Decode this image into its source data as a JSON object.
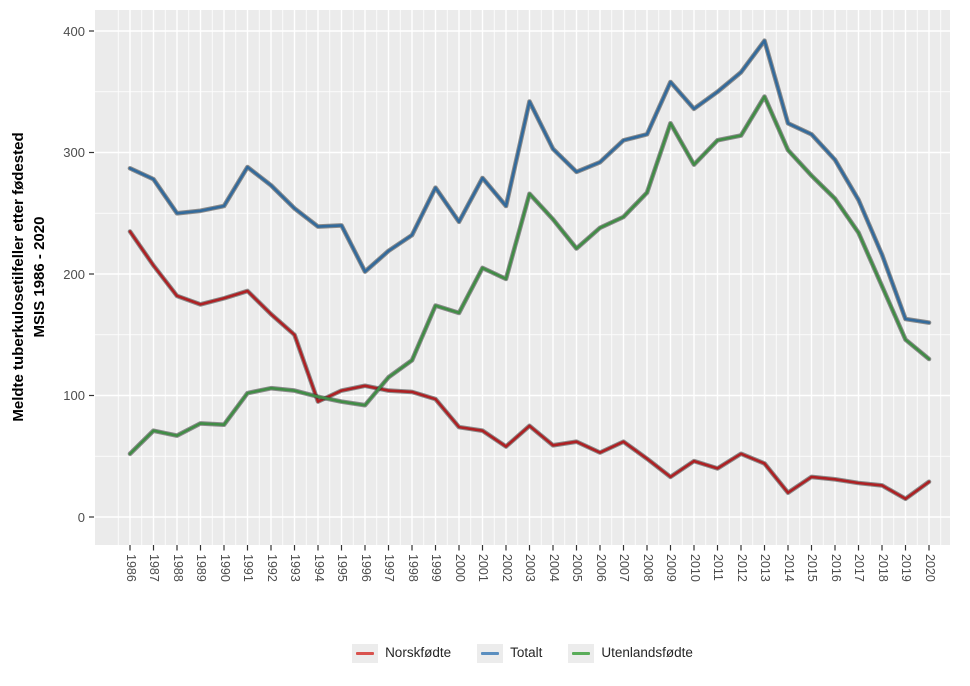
{
  "page": {
    "background": "#ffffff",
    "panel_background": "#ebebeb",
    "grid_color": "#ffffff",
    "tick_color": "#333333",
    "tick_label_color": "#4d4d4d"
  },
  "y_axis_title_lines": [
    "Meldte tuberkulosetilfeller etter fødested",
    "MSIS 1986 - 2020"
  ],
  "legend": {
    "items": [
      {
        "label": "Norskfødte",
        "color": "#d9534f"
      },
      {
        "label": "Totalt",
        "color": "#5b8fc0"
      },
      {
        "label": "Utenlandsfødte",
        "color": "#5aad5a"
      }
    ]
  },
  "chart_data": {
    "type": "line",
    "title": "",
    "xlabel": "",
    "ylabel": "Meldte tuberkulosetilfeller etter fødested MSIS 1986 - 2020",
    "x": [
      1986,
      1987,
      1988,
      1989,
      1990,
      1991,
      1992,
      1993,
      1994,
      1995,
      1996,
      1997,
      1998,
      1999,
      2000,
      2001,
      2002,
      2003,
      2004,
      2005,
      2006,
      2007,
      2008,
      2009,
      2010,
      2011,
      2012,
      2013,
      2014,
      2015,
      2016,
      2017,
      2018,
      2019,
      2020
    ],
    "y_ticks": [
      0,
      100,
      200,
      300,
      400
    ],
    "ylim": [
      0,
      417
    ],
    "grid": "major+minor",
    "legend_position": "bottom",
    "series": [
      {
        "name": "Norskfødte",
        "color": "#ad2124",
        "values": [
          235,
          207,
          182,
          175,
          180,
          186,
          167,
          150,
          95,
          104,
          108,
          104,
          103,
          97,
          74,
          71,
          58,
          75,
          59,
          62,
          53,
          62,
          48,
          33,
          46,
          40,
          52,
          44,
          20,
          33,
          31,
          28,
          26,
          15,
          29
        ]
      },
      {
        "name": "Totalt",
        "color": "#336a9b",
        "values": [
          287,
          278,
          250,
          252,
          256,
          288,
          273,
          254,
          239,
          240,
          202,
          219,
          232,
          271,
          243,
          279,
          256,
          342,
          303,
          284,
          292,
          310,
          315,
          358,
          336,
          350,
          366,
          392,
          324,
          315,
          294,
          261,
          216,
          163,
          160
        ]
      },
      {
        "name": "Utenlandsfødte",
        "color": "#418c46",
        "values": [
          52,
          71,
          67,
          77,
          76,
          102,
          106,
          104,
          99,
          95,
          92,
          115,
          129,
          174,
          168,
          205,
          196,
          266,
          245,
          221,
          238,
          247,
          267,
          324,
          290,
          310,
          314,
          346,
          302,
          281,
          262,
          234,
          190,
          146,
          130
        ]
      }
    ]
  }
}
